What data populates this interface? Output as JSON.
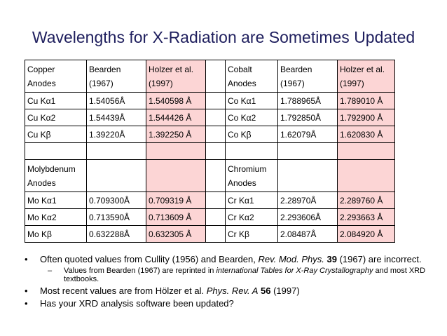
{
  "title": "Wavelengths for X-Radiation are Sometimes Updated",
  "table": {
    "header": {
      "c0a": "Copper",
      "c0b": "Anodes",
      "c1a": "Bearden",
      "c1b": "(1967)",
      "c2a": "Holzer et al.",
      "c2b": "(1997)",
      "c4a": "Cobalt",
      "c4b": "Anodes",
      "c5a": "Bearden",
      "c5b": "(1967)",
      "c6a": "Holzer et al.",
      "c6b": "(1997)"
    },
    "rows1": [
      {
        "c0": "Cu Kα1",
        "c1": "1.54056Å",
        "c2": "1.540598 Å",
        "c4": "Co Kα1",
        "c5": "1.788965Å",
        "c6": "1.789010 Å"
      },
      {
        "c0": "Cu Kα2",
        "c1": "1.54439Å",
        "c2": "1.544426 Å",
        "c4": "Co Kα2",
        "c5": "1.792850Å",
        "c6": "1.792900 Å"
      },
      {
        "c0": "Cu Kβ",
        "c1": "1.39220Å",
        "c2": "1.392250 Å",
        "c4": "Co Kβ",
        "c5": "1.62079Å",
        "c6": "1.620830 Å"
      }
    ],
    "header2": {
      "c0a": "Molybdenum",
      "c0b": "Anodes",
      "c4a": "Chromium",
      "c4b": "Anodes"
    },
    "rows2": [
      {
        "c0": "Mo Kα1",
        "c1": "0.709300Å",
        "c2": " 0.709319 Å",
        "c4": "Cr Kα1",
        "c5": "2.28970Å",
        "c6": "2.289760 Å"
      },
      {
        "c0": "Mo Kα2",
        "c1": "0.713590Å",
        "c2": "0.713609 Å",
        "c4": "Cr Kα2",
        "c5": "2.293606Å",
        "c6": "2.293663 Å"
      },
      {
        "c0": "Mo Kβ",
        "c1": "0.632288Å",
        "c2": "0.632305 Å",
        "c4": "Cr Kβ",
        "c5": "2.08487Å",
        "c6": "2.084920 Å"
      }
    ]
  },
  "bullets": {
    "marker": "•",
    "dash": "–",
    "b1_pre": "Often quoted values from Cullity (1956) and Bearden, ",
    "b1_journal": "Rev. Mod. Phys.",
    "b1_vol": " 39",
    "b1_post": " (1967) are incorrect.",
    "b1_sub_pre": "Values from Bearden (1967) are reprinted in ",
    "b1_sub_book": "international Tables for X-Ray Crystallography",
    "b1_sub_post": " and most XRD textbooks.",
    "b2_pre": "Most recent values are from Hölzer et al. ",
    "b2_journal": "Phys. Rev. A",
    "b2_vol": " 56",
    "b2_post": " (1997)",
    "b3": "Has your XRD analysis software been updated?"
  }
}
